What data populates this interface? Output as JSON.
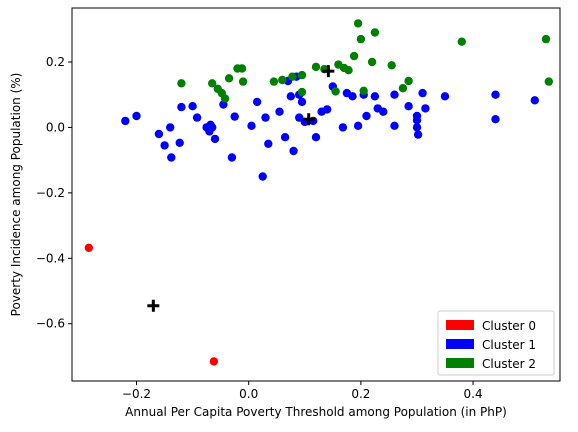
{
  "chart_data": {
    "type": "scatter",
    "title": "",
    "xlabel": "Annual Per Capita Poverty Threshold among Population (in PhP)",
    "ylabel": "Poverty Incidence among Population (%)",
    "xlim": [
      -0.315,
      0.555
    ],
    "ylim": [
      -0.775,
      0.365
    ],
    "x_ticks": [
      -0.2,
      0.0,
      0.2,
      0.4
    ],
    "x_tick_labels": [
      "−0.2",
      "0.0",
      "0.2",
      "0.4"
    ],
    "y_ticks": [
      -0.6,
      -0.4,
      -0.2,
      0.0,
      0.2
    ],
    "y_tick_labels": [
      "−0.6",
      "−0.4",
      "−0.2",
      "0.0",
      "0.2"
    ],
    "grid": false,
    "legend_position": "bottom-right",
    "series": [
      {
        "name": "Cluster 0",
        "color": "#ff0000",
        "points": [
          [
            -0.285,
            -0.368
          ],
          [
            -0.062,
            -0.715
          ]
        ]
      },
      {
        "name": "Cluster 1",
        "color": "#0000ff",
        "points": [
          [
            -0.22,
            0.02
          ],
          [
            -0.2,
            0.035
          ],
          [
            -0.16,
            -0.02
          ],
          [
            -0.15,
            -0.055
          ],
          [
            -0.14,
            0.0
          ],
          [
            -0.138,
            -0.092
          ],
          [
            -0.123,
            -0.047
          ],
          [
            -0.12,
            0.062
          ],
          [
            -0.1,
            0.065
          ],
          [
            -0.092,
            0.03
          ],
          [
            -0.075,
            0.0
          ],
          [
            -0.07,
            -0.012
          ],
          [
            -0.068,
            0.008
          ],
          [
            -0.065,
            0.0
          ],
          [
            -0.06,
            -0.035
          ],
          [
            -0.045,
            0.07
          ],
          [
            -0.03,
            -0.092
          ],
          [
            -0.025,
            0.033
          ],
          [
            0.005,
            0.005
          ],
          [
            0.015,
            0.078
          ],
          [
            0.025,
            -0.15
          ],
          [
            0.03,
            0.03
          ],
          [
            0.035,
            -0.05
          ],
          [
            0.055,
            0.048
          ],
          [
            0.065,
            -0.03
          ],
          [
            0.07,
            0.142
          ],
          [
            0.075,
            0.095
          ],
          [
            0.085,
            0.155
          ],
          [
            0.08,
            -0.072
          ],
          [
            0.09,
            0.1
          ],
          [
            0.09,
            0.03
          ],
          [
            0.095,
            0.078
          ],
          [
            0.1,
            0.017
          ],
          [
            0.115,
            0.02
          ],
          [
            0.12,
            -0.03
          ],
          [
            0.13,
            0.048
          ],
          [
            0.14,
            0.055
          ],
          [
            0.15,
            0.125
          ],
          [
            0.168,
            0.0
          ],
          [
            0.175,
            0.105
          ],
          [
            0.185,
            0.095
          ],
          [
            0.195,
            0.005
          ],
          [
            0.205,
            0.1
          ],
          [
            0.21,
            0.035
          ],
          [
            0.225,
            0.095
          ],
          [
            0.23,
            0.058
          ],
          [
            0.24,
            0.048
          ],
          [
            0.26,
            0.1
          ],
          [
            0.26,
            0.005
          ],
          [
            0.285,
            0.065
          ],
          [
            0.3,
            0.035
          ],
          [
            0.3,
            0.022
          ],
          [
            0.3,
            0.0
          ],
          [
            0.302,
            -0.022
          ],
          [
            0.31,
            0.105
          ],
          [
            0.315,
            0.058
          ],
          [
            0.35,
            0.095
          ],
          [
            0.44,
            0.1
          ],
          [
            0.44,
            0.025
          ],
          [
            0.51,
            0.083
          ]
        ]
      },
      {
        "name": "Cluster 2",
        "color": "#008000",
        "points": [
          [
            -0.12,
            0.135
          ],
          [
            -0.065,
            0.135
          ],
          [
            -0.055,
            0.118
          ],
          [
            -0.048,
            0.105
          ],
          [
            -0.042,
            0.088
          ],
          [
            -0.035,
            0.15
          ],
          [
            -0.02,
            0.18
          ],
          [
            -0.012,
            0.18
          ],
          [
            -0.01,
            0.14
          ],
          [
            0.045,
            0.14
          ],
          [
            0.06,
            0.145
          ],
          [
            0.078,
            0.155
          ],
          [
            0.095,
            0.16
          ],
          [
            0.095,
            0.108
          ],
          [
            0.12,
            0.185
          ],
          [
            0.135,
            0.178
          ],
          [
            0.155,
            0.11
          ],
          [
            0.16,
            0.192
          ],
          [
            0.17,
            0.182
          ],
          [
            0.178,
            0.175
          ],
          [
            0.188,
            0.218
          ],
          [
            0.195,
            0.318
          ],
          [
            0.2,
            0.27
          ],
          [
            0.205,
            0.112
          ],
          [
            0.22,
            0.2
          ],
          [
            0.225,
            0.29
          ],
          [
            0.255,
            0.19
          ],
          [
            0.275,
            0.12
          ],
          [
            0.285,
            0.142
          ],
          [
            0.38,
            0.262
          ],
          [
            0.53,
            0.27
          ],
          [
            0.535,
            0.14
          ]
        ]
      }
    ],
    "centroids": {
      "color": "#000000",
      "marker": "plus",
      "points": [
        [
          -0.17,
          -0.545
        ],
        [
          0.107,
          0.025
        ],
        [
          0.142,
          0.172
        ]
      ]
    }
  }
}
